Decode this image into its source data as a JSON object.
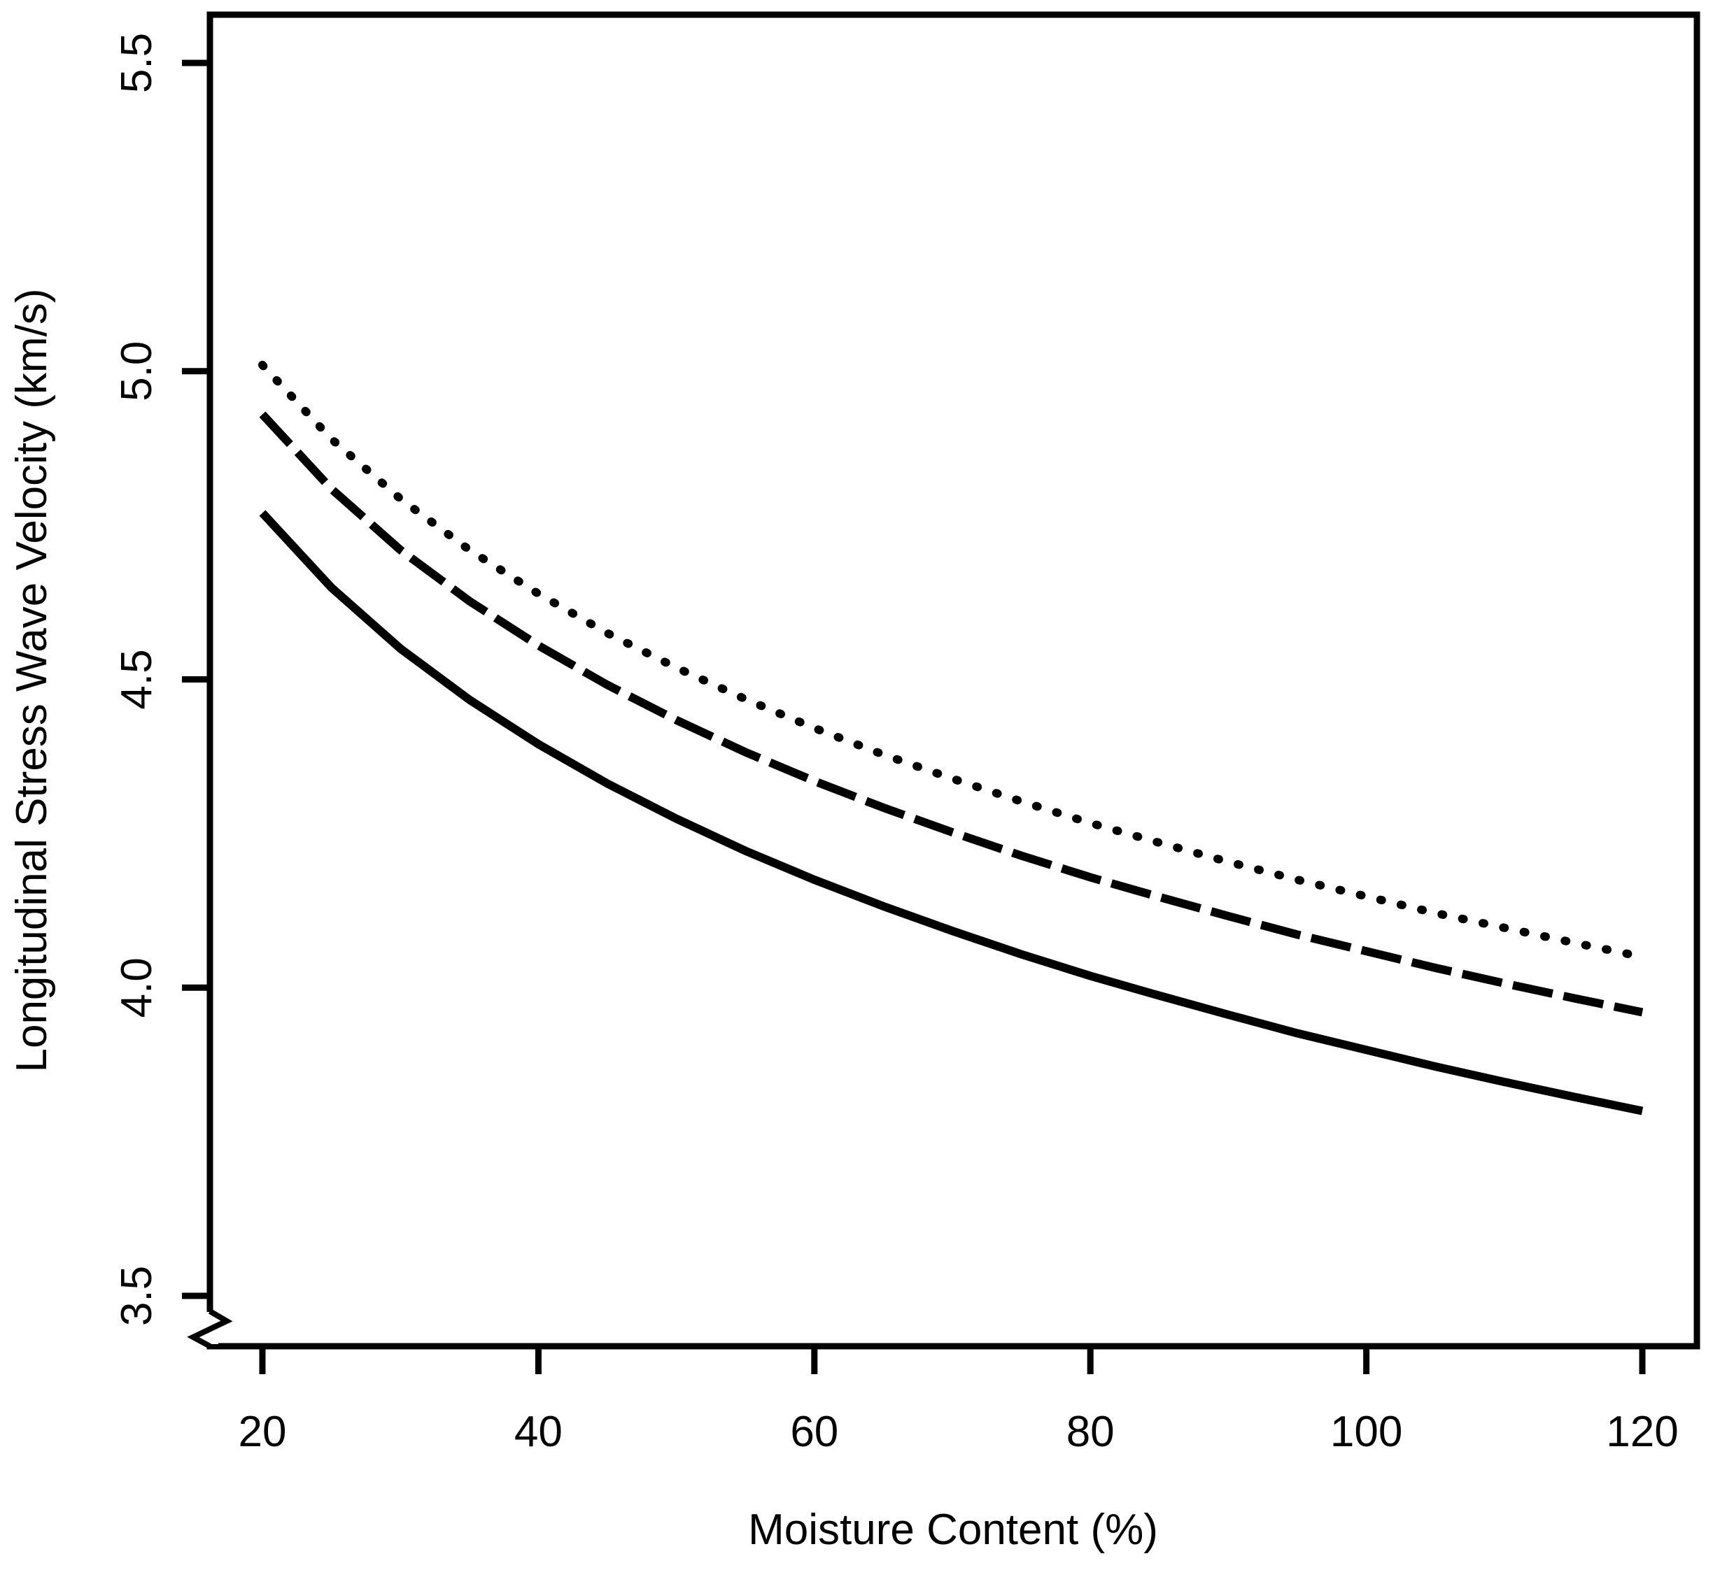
{
  "chart_data": {
    "type": "line",
    "title": "",
    "xlabel": "Moisture Content (%)",
    "ylabel": "Longitudinal Stress Wave Velocity (km/s)",
    "xlim": [
      20,
      120
    ],
    "ylim": [
      3.5,
      5.5
    ],
    "x_ticks": [
      "20",
      "40",
      "60",
      "80",
      "100",
      "120"
    ],
    "y_ticks": [
      "3.5",
      "4.0",
      "4.5",
      "5.0",
      "5.5"
    ],
    "y_axis_break_below_tick": "3.5",
    "grid": false,
    "legend": "none",
    "frame": "full-box",
    "colors": {
      "ink": "#000000",
      "background": "#ffffff"
    },
    "x": [
      20,
      25,
      30,
      35,
      40,
      45,
      50,
      55,
      60,
      65,
      70,
      75,
      80,
      85,
      90,
      95,
      100,
      105,
      110,
      115,
      120
    ],
    "series": [
      {
        "name": "solid-line",
        "style": "solid",
        "values": [
          4.77,
          4.649,
          4.55,
          4.467,
          4.395,
          4.331,
          4.274,
          4.222,
          4.175,
          4.132,
          4.092,
          4.054,
          4.019,
          3.987,
          3.956,
          3.926,
          3.899,
          3.872,
          3.847,
          3.823,
          3.8
        ]
      },
      {
        "name": "dashed-line",
        "style": "dashed",
        "values": [
          4.93,
          4.809,
          4.71,
          4.627,
          4.555,
          4.491,
          4.434,
          4.382,
          4.335,
          4.292,
          4.252,
          4.214,
          4.179,
          4.147,
          4.116,
          4.086,
          4.059,
          4.032,
          4.007,
          3.983,
          3.96
        ]
      },
      {
        "name": "dotted-line",
        "style": "dotted",
        "values": [
          5.01,
          4.89,
          4.793,
          4.71,
          4.639,
          4.575,
          4.519,
          4.468,
          4.421,
          4.378,
          4.339,
          4.302,
          4.267,
          4.235,
          4.204,
          4.175,
          4.148,
          4.121,
          4.097,
          4.073,
          4.05
        ]
      }
    ]
  }
}
